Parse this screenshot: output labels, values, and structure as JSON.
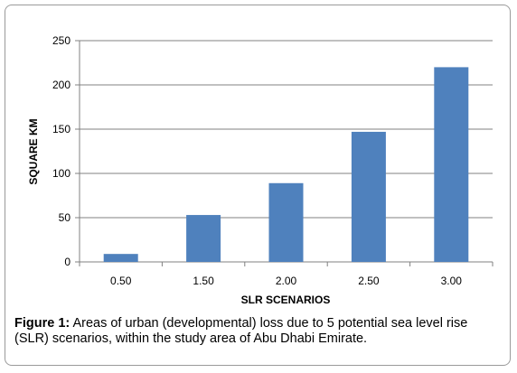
{
  "caption": {
    "label": "Figure 1:",
    "text": " Areas of urban (developmental) loss due to 5 potential sea level rise (SLR) scenarios, within the study area of Abu Dhabi Emirate."
  },
  "colors": {
    "bar": "#4f81bd",
    "grid": "#808080"
  },
  "chart_data": {
    "type": "bar",
    "title": "",
    "xlabel": "SLR SCENARIOS",
    "ylabel": "SQUARE KM",
    "categories": [
      "0.50",
      "1.50",
      "2.00",
      "2.50",
      "3.00"
    ],
    "values": [
      9,
      53,
      89,
      147,
      220
    ],
    "ylim": [
      0,
      250
    ],
    "yticks": [
      0,
      50,
      100,
      150,
      200,
      250
    ],
    "grid": true,
    "legend": "none"
  }
}
